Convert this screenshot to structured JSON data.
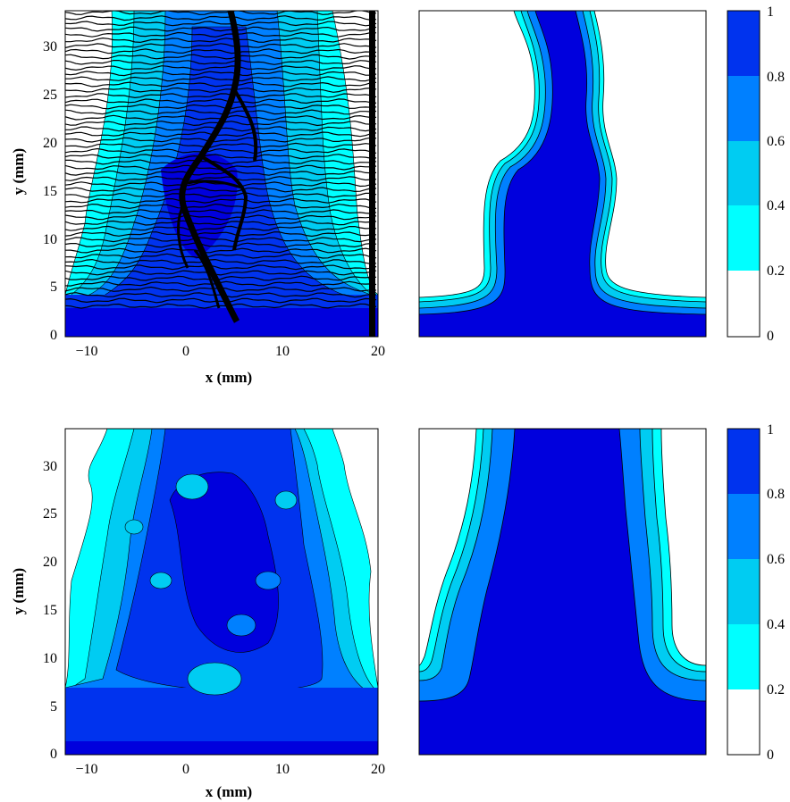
{
  "colors": {
    "level_0_0.2": "#ffffff",
    "level_0.2_0.4": "#00ffff",
    "level_0.4_0.6": "#00ccf2",
    "level_0.6_0.8": "#0080ff",
    "level_0.8_1": "#0033ee",
    "level_top": "#0000dd",
    "contour_line": "#000000"
  },
  "chart_data": [
    {
      "type": "heatmap",
      "panel": "top-left (experimental)",
      "xlabel": "x (mm)",
      "ylabel": "y (mm)",
      "xlim": [
        -12,
        20
      ],
      "ylim": [
        0,
        34
      ],
      "xticks": [
        "−10",
        "0",
        "10",
        "20"
      ],
      "yticks": [
        "0",
        "5",
        "10",
        "15",
        "20",
        "25",
        "30"
      ],
      "overlay": "black contour lines (wavy horizontal iso-lines with dense cracks near x≈2–5 mm)"
    },
    {
      "type": "heatmap",
      "panel": "top-right (model)",
      "xlabel": "",
      "ylabel": "",
      "colorbar": {
        "ticks": [
          "0",
          "0.2",
          "0.4",
          "0.6",
          "0.8",
          "1"
        ],
        "levels": [
          0,
          0.2,
          0.4,
          0.6,
          0.8,
          1
        ]
      }
    },
    {
      "type": "heatmap",
      "panel": "bottom-left (experimental)",
      "xlabel": "x (mm)",
      "ylabel": "y (mm)",
      "xlim": [
        -12,
        20
      ],
      "ylim": [
        0,
        34
      ],
      "xticks": [
        "−10",
        "0",
        "10",
        "20"
      ],
      "yticks": [
        "0",
        "5",
        "10",
        "15",
        "20",
        "25",
        "30"
      ]
    },
    {
      "type": "heatmap",
      "panel": "bottom-right (model)",
      "xlabel": "",
      "ylabel": "",
      "colorbar": {
        "ticks": [
          "0",
          "0.2",
          "0.4",
          "0.6",
          "0.8",
          "1"
        ],
        "levels": [
          0,
          0.2,
          0.4,
          0.6,
          0.8,
          1
        ]
      }
    }
  ]
}
